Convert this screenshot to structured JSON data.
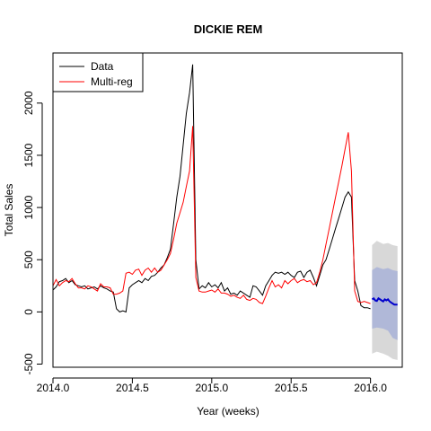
{
  "chart_data": {
    "type": "line",
    "title": "DICKIE REM",
    "xlabel": "Year (weeks)",
    "ylabel": "Total Sales",
    "xlim": [
      2014.0,
      2016.2
    ],
    "ylim": [
      -530,
      2480
    ],
    "x_ticks": [
      {
        "value": 2014.0,
        "label": "2014.0"
      },
      {
        "value": 2014.5,
        "label": "2014.5"
      },
      {
        "value": 2015.0,
        "label": "2015.0"
      },
      {
        "value": 2015.5,
        "label": "2015.5"
      },
      {
        "value": 2016.0,
        "label": "2016.0"
      }
    ],
    "y_ticks": [
      {
        "value": -500,
        "label": "-500"
      },
      {
        "value": 0,
        "label": "0"
      },
      {
        "value": 500,
        "label": "500"
      },
      {
        "value": 1000,
        "label": "1000"
      },
      {
        "value": 1500,
        "label": "1500"
      },
      {
        "value": 2000,
        "label": "2000"
      }
    ],
    "grid": false,
    "legend": {
      "position": "top-left",
      "entries": [
        {
          "label": "Data",
          "color": "#000000"
        },
        {
          "label": "Multi-reg",
          "color": "#ff0000"
        }
      ]
    },
    "series": [
      {
        "name": "Data",
        "color": "#000000",
        "points": [
          [
            2014.0,
            210
          ],
          [
            2014.02,
            240
          ],
          [
            2014.04,
            290
          ],
          [
            2014.06,
            300
          ],
          [
            2014.08,
            320
          ],
          [
            2014.1,
            280
          ],
          [
            2014.12,
            300
          ],
          [
            2014.14,
            260
          ],
          [
            2014.16,
            250
          ],
          [
            2014.18,
            240
          ],
          [
            2014.2,
            250
          ],
          [
            2014.22,
            220
          ],
          [
            2014.24,
            230
          ],
          [
            2014.26,
            240
          ],
          [
            2014.28,
            220
          ],
          [
            2014.3,
            250
          ],
          [
            2014.32,
            230
          ],
          [
            2014.34,
            220
          ],
          [
            2014.36,
            200
          ],
          [
            2014.38,
            190
          ],
          [
            2014.4,
            30
          ],
          [
            2014.42,
            0
          ],
          [
            2014.44,
            10
          ],
          [
            2014.46,
            0
          ],
          [
            2014.48,
            230
          ],
          [
            2014.5,
            260
          ],
          [
            2014.52,
            280
          ],
          [
            2014.54,
            300
          ],
          [
            2014.56,
            280
          ],
          [
            2014.58,
            320
          ],
          [
            2014.6,
            300
          ],
          [
            2014.62,
            340
          ],
          [
            2014.64,
            350
          ],
          [
            2014.66,
            380
          ],
          [
            2014.68,
            420
          ],
          [
            2014.7,
            450
          ],
          [
            2014.72,
            520
          ],
          [
            2014.74,
            600
          ],
          [
            2014.76,
            850
          ],
          [
            2014.78,
            1100
          ],
          [
            2014.8,
            1300
          ],
          [
            2014.82,
            1600
          ],
          [
            2014.84,
            1900
          ],
          [
            2014.86,
            2100
          ],
          [
            2014.88,
            2370
          ],
          [
            2014.9,
            500
          ],
          [
            2014.92,
            220
          ],
          [
            2014.94,
            250
          ],
          [
            2014.96,
            230
          ],
          [
            2014.98,
            280
          ],
          [
            2015.0,
            240
          ],
          [
            2015.02,
            260
          ],
          [
            2015.04,
            230
          ],
          [
            2015.06,
            280
          ],
          [
            2015.08,
            200
          ],
          [
            2015.1,
            230
          ],
          [
            2015.12,
            170
          ],
          [
            2015.14,
            180
          ],
          [
            2015.16,
            160
          ],
          [
            2015.18,
            200
          ],
          [
            2015.2,
            180
          ],
          [
            2015.22,
            160
          ],
          [
            2015.24,
            140
          ],
          [
            2015.26,
            250
          ],
          [
            2015.28,
            240
          ],
          [
            2015.3,
            200
          ],
          [
            2015.32,
            160
          ],
          [
            2015.34,
            250
          ],
          [
            2015.36,
            300
          ],
          [
            2015.38,
            350
          ],
          [
            2015.4,
            380
          ],
          [
            2015.42,
            370
          ],
          [
            2015.44,
            380
          ],
          [
            2015.46,
            360
          ],
          [
            2015.48,
            380
          ],
          [
            2015.5,
            350
          ],
          [
            2015.52,
            330
          ],
          [
            2015.54,
            380
          ],
          [
            2015.56,
            390
          ],
          [
            2015.58,
            330
          ],
          [
            2015.6,
            380
          ],
          [
            2015.62,
            400
          ],
          [
            2015.64,
            330
          ],
          [
            2015.66,
            250
          ],
          [
            2015.68,
            350
          ],
          [
            2015.7,
            450
          ],
          [
            2015.72,
            500
          ],
          [
            2015.74,
            600
          ],
          [
            2015.76,
            700
          ],
          [
            2015.78,
            800
          ],
          [
            2015.8,
            900
          ],
          [
            2015.82,
            1000
          ],
          [
            2015.84,
            1100
          ],
          [
            2015.86,
            1150
          ],
          [
            2015.88,
            1100
          ],
          [
            2015.9,
            300
          ],
          [
            2015.92,
            200
          ],
          [
            2015.94,
            60
          ],
          [
            2015.96,
            40
          ],
          [
            2015.98,
            40
          ],
          [
            2016.0,
            30
          ]
        ]
      },
      {
        "name": "Multi-reg",
        "color": "#ff0000",
        "points": [
          [
            2014.0,
            250
          ],
          [
            2014.02,
            310
          ],
          [
            2014.04,
            250
          ],
          [
            2014.06,
            280
          ],
          [
            2014.08,
            300
          ],
          [
            2014.1,
            290
          ],
          [
            2014.12,
            320
          ],
          [
            2014.14,
            270
          ],
          [
            2014.16,
            230
          ],
          [
            2014.18,
            230
          ],
          [
            2014.2,
            220
          ],
          [
            2014.22,
            250
          ],
          [
            2014.24,
            240
          ],
          [
            2014.26,
            220
          ],
          [
            2014.28,
            200
          ],
          [
            2014.3,
            270
          ],
          [
            2014.32,
            240
          ],
          [
            2014.34,
            240
          ],
          [
            2014.36,
            230
          ],
          [
            2014.38,
            170
          ],
          [
            2014.4,
            170
          ],
          [
            2014.42,
            180
          ],
          [
            2014.44,
            200
          ],
          [
            2014.46,
            370
          ],
          [
            2014.48,
            380
          ],
          [
            2014.5,
            360
          ],
          [
            2014.52,
            400
          ],
          [
            2014.54,
            410
          ],
          [
            2014.56,
            350
          ],
          [
            2014.58,
            400
          ],
          [
            2014.6,
            420
          ],
          [
            2014.62,
            380
          ],
          [
            2014.64,
            420
          ],
          [
            2014.66,
            380
          ],
          [
            2014.68,
            400
          ],
          [
            2014.7,
            450
          ],
          [
            2014.72,
            500
          ],
          [
            2014.74,
            560
          ],
          [
            2014.76,
            700
          ],
          [
            2014.78,
            850
          ],
          [
            2014.8,
            950
          ],
          [
            2014.82,
            1050
          ],
          [
            2014.84,
            1200
          ],
          [
            2014.86,
            1350
          ],
          [
            2014.88,
            1780
          ],
          [
            2014.9,
            330
          ],
          [
            2014.92,
            200
          ],
          [
            2014.94,
            190
          ],
          [
            2014.96,
            190
          ],
          [
            2014.98,
            200
          ],
          [
            2015.0,
            210
          ],
          [
            2015.02,
            190
          ],
          [
            2015.04,
            220
          ],
          [
            2015.06,
            180
          ],
          [
            2015.08,
            180
          ],
          [
            2015.1,
            170
          ],
          [
            2015.12,
            150
          ],
          [
            2015.14,
            160
          ],
          [
            2015.16,
            140
          ],
          [
            2015.18,
            130
          ],
          [
            2015.2,
            160
          ],
          [
            2015.22,
            120
          ],
          [
            2015.24,
            110
          ],
          [
            2015.26,
            130
          ],
          [
            2015.28,
            120
          ],
          [
            2015.3,
            90
          ],
          [
            2015.32,
            80
          ],
          [
            2015.34,
            150
          ],
          [
            2015.36,
            230
          ],
          [
            2015.38,
            300
          ],
          [
            2015.4,
            240
          ],
          [
            2015.42,
            260
          ],
          [
            2015.44,
            230
          ],
          [
            2015.46,
            300
          ],
          [
            2015.48,
            270
          ],
          [
            2015.5,
            300
          ],
          [
            2015.52,
            320
          ],
          [
            2015.54,
            280
          ],
          [
            2015.56,
            300
          ],
          [
            2015.58,
            310
          ],
          [
            2015.6,
            290
          ],
          [
            2015.62,
            300
          ],
          [
            2015.64,
            260
          ],
          [
            2015.66,
            280
          ],
          [
            2015.68,
            380
          ],
          [
            2015.7,
            500
          ],
          [
            2015.72,
            650
          ],
          [
            2015.74,
            800
          ],
          [
            2015.76,
            950
          ],
          [
            2015.78,
            1100
          ],
          [
            2015.8,
            1250
          ],
          [
            2015.82,
            1400
          ],
          [
            2015.84,
            1560
          ],
          [
            2015.86,
            1720
          ],
          [
            2015.88,
            1350
          ],
          [
            2015.9,
            200
          ],
          [
            2015.92,
            100
          ],
          [
            2015.94,
            90
          ],
          [
            2015.96,
            100
          ],
          [
            2015.98,
            90
          ],
          [
            2016.0,
            80
          ]
        ]
      }
    ],
    "forecast": {
      "color": "#0000cc",
      "band_inner_color": "#b0b8d8",
      "band_outer_color": "#d8d8d8",
      "points": [
        [
          2016.01,
          120
        ],
        [
          2016.02,
          130
        ],
        [
          2016.03,
          110
        ],
        [
          2016.04,
          105
        ],
        [
          2016.05,
          130
        ],
        [
          2016.06,
          120
        ],
        [
          2016.07,
          110
        ],
        [
          2016.08,
          100
        ],
        [
          2016.09,
          120
        ],
        [
          2016.1,
          110
        ],
        [
          2016.11,
          120
        ],
        [
          2016.12,
          100
        ],
        [
          2016.13,
          90
        ],
        [
          2016.14,
          80
        ],
        [
          2016.15,
          70
        ],
        [
          2016.16,
          70
        ],
        [
          2016.17,
          70
        ]
      ],
      "inner_band": [
        [
          2016.01,
          400,
          -160
        ],
        [
          2016.04,
          430,
          -150
        ],
        [
          2016.08,
          410,
          -160
        ],
        [
          2016.11,
          420,
          -180
        ],
        [
          2016.14,
          400,
          -250
        ],
        [
          2016.17,
          390,
          -270
        ]
      ],
      "outer_band": [
        [
          2016.01,
          640,
          -400
        ],
        [
          2016.04,
          680,
          -380
        ],
        [
          2016.08,
          650,
          -400
        ],
        [
          2016.11,
          660,
          -420
        ],
        [
          2016.14,
          640,
          -450
        ],
        [
          2016.17,
          630,
          -460
        ]
      ]
    }
  }
}
